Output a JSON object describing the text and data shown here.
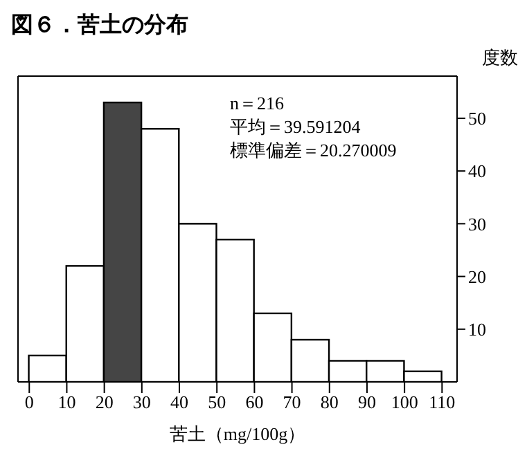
{
  "chart_data": {
    "type": "histogram",
    "title": "図６．苦土の分布",
    "xlabel": "苦土（mg/100g）",
    "ylabel": "度数",
    "bins": [
      0,
      10,
      20,
      30,
      40,
      50,
      60,
      70,
      80,
      90,
      100,
      110
    ],
    "values": [
      5,
      22,
      53,
      48,
      30,
      27,
      13,
      8,
      4,
      4,
      2
    ],
    "colors": [
      "#ffffff",
      "#ffffff",
      "#454545",
      "#ffffff",
      "#ffffff",
      "#ffffff",
      "#ffffff",
      "#ffffff",
      "#ffffff",
      "#ffffff",
      "#ffffff"
    ],
    "xlim": [
      -3,
      114
    ],
    "xticks": [
      0,
      10,
      20,
      30,
      40,
      50,
      60,
      70,
      80,
      90,
      100,
      110
    ],
    "ylim": [
      0,
      58
    ],
    "yticks": [
      10,
      20,
      30,
      40,
      50
    ],
    "annotations": [
      "n＝216",
      "平均＝39.591204",
      "標準偏差＝20.270009"
    ],
    "grid": false,
    "legend": false
  }
}
